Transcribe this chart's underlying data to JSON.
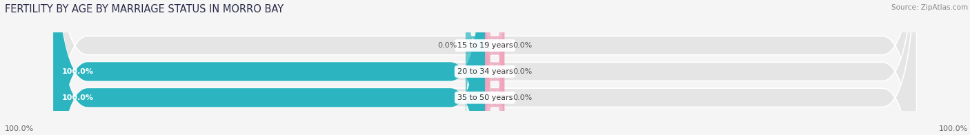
{
  "title": "FERTILITY BY AGE BY MARRIAGE STATUS IN MORRO BAY",
  "source": "Source: ZipAtlas.com",
  "categories": [
    "15 to 19 years",
    "20 to 34 years",
    "35 to 50 years"
  ],
  "married_values": [
    0.0,
    100.0,
    100.0
  ],
  "unmarried_values": [
    0.0,
    0.0,
    0.0
  ],
  "married_color": "#2CB5C0",
  "unmarried_color": "#F0A0B8",
  "bar_bg_color": "#E5E5E5",
  "bar_height": 0.72,
  "title_fontsize": 10.5,
  "label_fontsize": 8,
  "value_fontsize": 8,
  "source_fontsize": 7.5,
  "legend_fontsize": 8.5,
  "left_axis_label": "100.0%",
  "right_axis_label": "100.0%",
  "background_color": "#F5F5F5",
  "xlim": 100,
  "nub_size": 4.5
}
